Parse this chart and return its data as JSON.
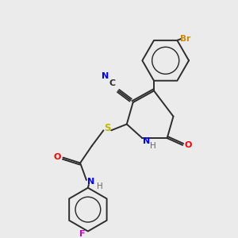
{
  "background_color": "#ebebeb",
  "bond_color": "#2d2d2d",
  "atom_colors": {
    "N": "#0000ff",
    "O": "#ff0000",
    "S": "#bbbb00",
    "Br": "#cc8800",
    "F": "#cc00cc",
    "C": "#2d2d2d",
    "H": "#666666"
  },
  "figsize": [
    3.0,
    3.0
  ],
  "dpi": 100
}
